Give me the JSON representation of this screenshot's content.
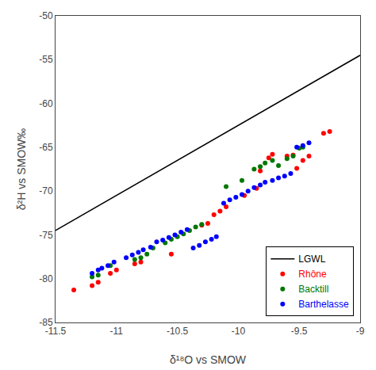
{
  "chart_data": {
    "type": "scatter",
    "xlabel": "δ¹⁸O vs SMOW",
    "ylabel": "δ²H vs SMOW‰",
    "xlim": [
      -11.5,
      -9.0
    ],
    "ylim": [
      -85,
      -50
    ],
    "xticks": [
      -11.5,
      -11.0,
      -10.5,
      -10.0,
      -9.5,
      -9.0
    ],
    "yticks": [
      -85,
      -80,
      -75,
      -70,
      -65,
      -60,
      -55,
      -50
    ],
    "grid": false,
    "legend": "lower right",
    "series": [
      {
        "name": "LGWL",
        "type": "line",
        "color": "#000000",
        "x": [
          -11.5,
          -9.0
        ],
        "values": [
          -74.5,
          -54.5
        ]
      },
      {
        "name": "Rhône",
        "type": "scatter",
        "color": "#ff0000",
        "x": [
          -11.35,
          -11.2,
          -11.15,
          -11.05,
          -11.0,
          -10.85,
          -10.8,
          -10.55,
          -10.3,
          -10.25,
          -10.2,
          -10.15,
          -10.1,
          -9.95,
          -9.85,
          -9.82,
          -9.75,
          -9.72,
          -9.6,
          -9.55,
          -9.52,
          -9.47,
          -9.42,
          -9.3,
          -9.25
        ],
        "values": [
          -81.3,
          -80.8,
          -80.4,
          -79.4,
          -79.0,
          -78.3,
          -78.1,
          -77.2,
          -73.9,
          -73.7,
          -72.7,
          -72.3,
          -71.8,
          -70.5,
          -69.7,
          -67.7,
          -66.2,
          -65.8,
          -66.0,
          -65.9,
          -67.4,
          -66.5,
          -66.0,
          -63.4,
          -63.2
        ]
      },
      {
        "name": "Backtill",
        "type": "scatter",
        "color": "#007700",
        "x": [
          -11.2,
          -11.15,
          -11.05,
          -10.85,
          -10.8,
          -10.75,
          -10.7,
          -10.6,
          -10.55,
          -10.5,
          -10.45,
          -10.4,
          -10.35,
          -10.3,
          -10.1,
          -9.97,
          -9.87,
          -9.82,
          -9.78,
          -9.72,
          -9.67,
          -9.6,
          -9.55,
          -9.5,
          -9.47
        ],
        "values": [
          -79.8,
          -79.6,
          -78.5,
          -77.8,
          -77.6,
          -77.2,
          -76.5,
          -75.9,
          -75.5,
          -75.2,
          -74.9,
          -74.5,
          -74.1,
          -73.8,
          -69.5,
          -68.8,
          -67.5,
          -67.2,
          -66.8,
          -66.5,
          -67.1,
          -66.3,
          -66.0,
          -65.1,
          -65.0
        ]
      },
      {
        "name": "Barthelasse",
        "type": "scatter",
        "color": "#0000ff",
        "x": [
          -11.2,
          -11.15,
          -11.12,
          -11.07,
          -11.02,
          -10.92,
          -10.87,
          -10.82,
          -10.78,
          -10.72,
          -10.67,
          -10.62,
          -10.57,
          -10.52,
          -10.47,
          -10.42,
          -10.37,
          -10.32,
          -10.27,
          -10.22,
          -10.18,
          -10.12,
          -10.07,
          -10.02,
          -9.97,
          -9.92,
          -9.87,
          -9.82,
          -9.78,
          -9.72,
          -9.67,
          -9.62,
          -9.57,
          -9.52,
          -9.47,
          -9.42
        ],
        "values": [
          -79.4,
          -79.0,
          -78.8,
          -78.5,
          -78.1,
          -77.6,
          -77.3,
          -77.0,
          -76.7,
          -76.4,
          -75.8,
          -75.6,
          -75.3,
          -75.0,
          -74.7,
          -74.4,
          -76.5,
          -76.2,
          -75.8,
          -75.5,
          -75.2,
          -71.4,
          -71.0,
          -70.7,
          -70.4,
          -70.0,
          -69.6,
          -69.3,
          -69.0,
          -68.8,
          -68.5,
          -68.3,
          -68.0,
          -65.0,
          -64.8,
          -64.5
        ]
      }
    ]
  }
}
